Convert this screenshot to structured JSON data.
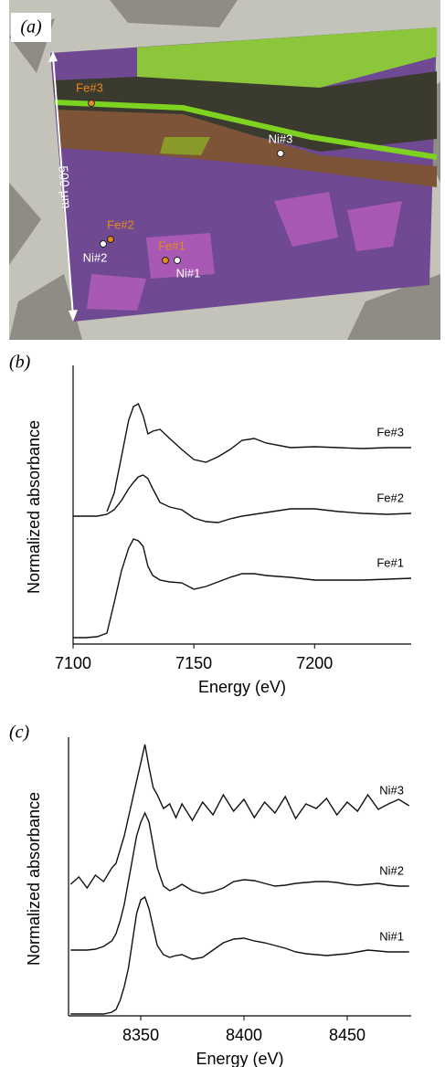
{
  "image_panel": {
    "panel_label": "(a)",
    "scale_bar": "500 µm",
    "points": [
      {
        "label": "Fe#3",
        "color": "#e8891e"
      },
      {
        "label": "Ni#3",
        "color": "#ffffff"
      },
      {
        "label": "Fe#2",
        "color": "#e8891e"
      },
      {
        "label": "Ni#2",
        "color": "#ffffff"
      },
      {
        "label": "Fe#1",
        "color": "#e8891e"
      },
      {
        "label": "Ni#1",
        "color": "#ffffff"
      }
    ]
  },
  "chart_data": [
    {
      "type": "line",
      "panel_label": "(b)",
      "y_label": "Normalized absorbance",
      "x_label": "Energy (eV)",
      "xlim": [
        7100,
        7240
      ],
      "xticks": [
        7100,
        7150,
        7200
      ],
      "ylim": [
        0,
        3
      ],
      "x": [
        7100,
        7105,
        7110,
        7114,
        7117,
        7120,
        7123,
        7125,
        7127,
        7129,
        7131,
        7133,
        7136,
        7140,
        7145,
        7150,
        7155,
        7160,
        7165,
        7170,
        7175,
        7180,
        7190,
        7200,
        7210,
        7220,
        7230,
        7240
      ],
      "series": [
        {
          "name": "Fe#1",
          "color": "#111111",
          "values": [
            0.07,
            0.07,
            0.08,
            0.12,
            0.45,
            0.8,
            1.05,
            1.15,
            1.13,
            1.07,
            0.85,
            0.75,
            0.7,
            0.68,
            0.67,
            0.6,
            0.63,
            0.68,
            0.73,
            0.77,
            0.77,
            0.75,
            0.73,
            0.7,
            0.7,
            0.7,
            0.71,
            0.72
          ]
        },
        {
          "name": "Fe#2",
          "color": "#111111",
          "values": [
            1.4,
            1.4,
            1.4,
            1.42,
            1.47,
            1.57,
            1.7,
            1.77,
            1.83,
            1.85,
            1.81,
            1.7,
            1.55,
            1.5,
            1.47,
            1.38,
            1.34,
            1.33,
            1.37,
            1.4,
            1.42,
            1.44,
            1.48,
            1.48,
            1.45,
            1.43,
            1.42,
            1.43
          ]
        },
        {
          "name": "Fe#3",
          "color": "#111111",
          "values": [
            null,
            null,
            null,
            1.45,
            1.65,
            2.05,
            2.45,
            2.6,
            2.63,
            2.5,
            2.3,
            2.33,
            2.35,
            2.25,
            2.13,
            2.02,
            1.99,
            2.05,
            2.13,
            2.23,
            2.25,
            2.2,
            2.15,
            2.16,
            2.15,
            2.14,
            2.15,
            2.15
          ]
        }
      ]
    },
    {
      "type": "line",
      "panel_label": "(c)",
      "y_label": "Normalized absorbance",
      "x_label": "Energy (eV)",
      "xlim": [
        8315,
        8481
      ],
      "xticks": [
        8350,
        8400,
        8450
      ],
      "ylim": [
        0,
        3
      ],
      "x": [
        8316,
        8320,
        8324,
        8328,
        8332,
        8336,
        8338,
        8340,
        8342,
        8344,
        8346,
        8348,
        8350,
        8352,
        8354,
        8356,
        8358,
        8361,
        8364,
        8367,
        8370,
        8375,
        8380,
        8385,
        8390,
        8395,
        8400,
        8405,
        8410,
        8415,
        8420,
        8425,
        8430,
        8435,
        8440,
        8445,
        8450,
        8455,
        8460,
        8465,
        8470,
        8475,
        8480
      ],
      "series": [
        {
          "name": "Ni#1",
          "color": "#111111",
          "values": [
            0.02,
            0.02,
            0.02,
            0.02,
            0.02,
            0.04,
            0.07,
            0.17,
            0.32,
            0.52,
            0.82,
            1.12,
            1.27,
            1.3,
            1.17,
            0.97,
            0.77,
            0.67,
            0.64,
            0.66,
            0.67,
            0.62,
            0.64,
            0.72,
            0.8,
            0.84,
            0.85,
            0.82,
            0.8,
            0.77,
            0.74,
            0.7,
            0.68,
            0.67,
            0.66,
            0.67,
            0.68,
            0.7,
            0.72,
            0.71,
            0.7,
            0.7,
            0.7
          ]
        },
        {
          "name": "Ni#2",
          "color": "#111111",
          "values": [
            0.72,
            0.72,
            0.72,
            0.73,
            0.76,
            0.82,
            0.9,
            1.04,
            1.22,
            1.47,
            1.72,
            1.97,
            2.12,
            2.22,
            2.12,
            1.87,
            1.62,
            1.42,
            1.37,
            1.4,
            1.44,
            1.37,
            1.34,
            1.36,
            1.4,
            1.47,
            1.49,
            1.48,
            1.45,
            1.42,
            1.43,
            1.45,
            1.46,
            1.47,
            1.47,
            1.46,
            1.44,
            1.43,
            1.44,
            1.45,
            1.43,
            1.42,
            1.42
          ]
        },
        {
          "name": "Ni#3",
          "color": "#111111",
          "values": [
            1.44,
            1.52,
            1.4,
            1.54,
            1.47,
            1.62,
            1.67,
            1.82,
            1.97,
            2.17,
            2.37,
            2.57,
            2.77,
            2.97,
            2.72,
            2.5,
            2.42,
            2.27,
            2.32,
            2.17,
            2.32,
            2.14,
            2.34,
            2.2,
            2.42,
            2.24,
            2.37,
            2.17,
            2.34,
            2.22,
            2.4,
            2.16,
            2.32,
            2.27,
            2.38,
            2.2,
            2.34,
            2.24,
            2.42,
            2.26,
            2.32,
            2.37,
            2.3
          ]
        }
      ]
    }
  ]
}
